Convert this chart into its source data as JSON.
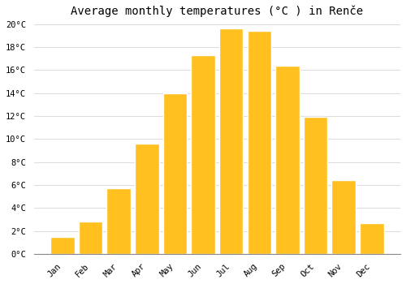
{
  "title": "Average monthly temperatures (°C ) in Renče",
  "months": [
    "Jan",
    "Feb",
    "Mar",
    "Apr",
    "May",
    "Jun",
    "Jul",
    "Aug",
    "Sep",
    "Oct",
    "Nov",
    "Dec"
  ],
  "values": [
    1.5,
    2.8,
    5.7,
    9.6,
    14.0,
    17.3,
    19.6,
    19.4,
    16.4,
    11.9,
    6.4,
    2.7
  ],
  "bar_color": "#FFC020",
  "bar_edge_color": "#FFFFFF",
  "ylim": [
    0,
    20
  ],
  "yticks": [
    0,
    2,
    4,
    6,
    8,
    10,
    12,
    14,
    16,
    18,
    20
  ],
  "background_color": "#FFFFFF",
  "grid_color": "#DDDDDD",
  "title_fontsize": 10,
  "tick_fontsize": 7.5
}
